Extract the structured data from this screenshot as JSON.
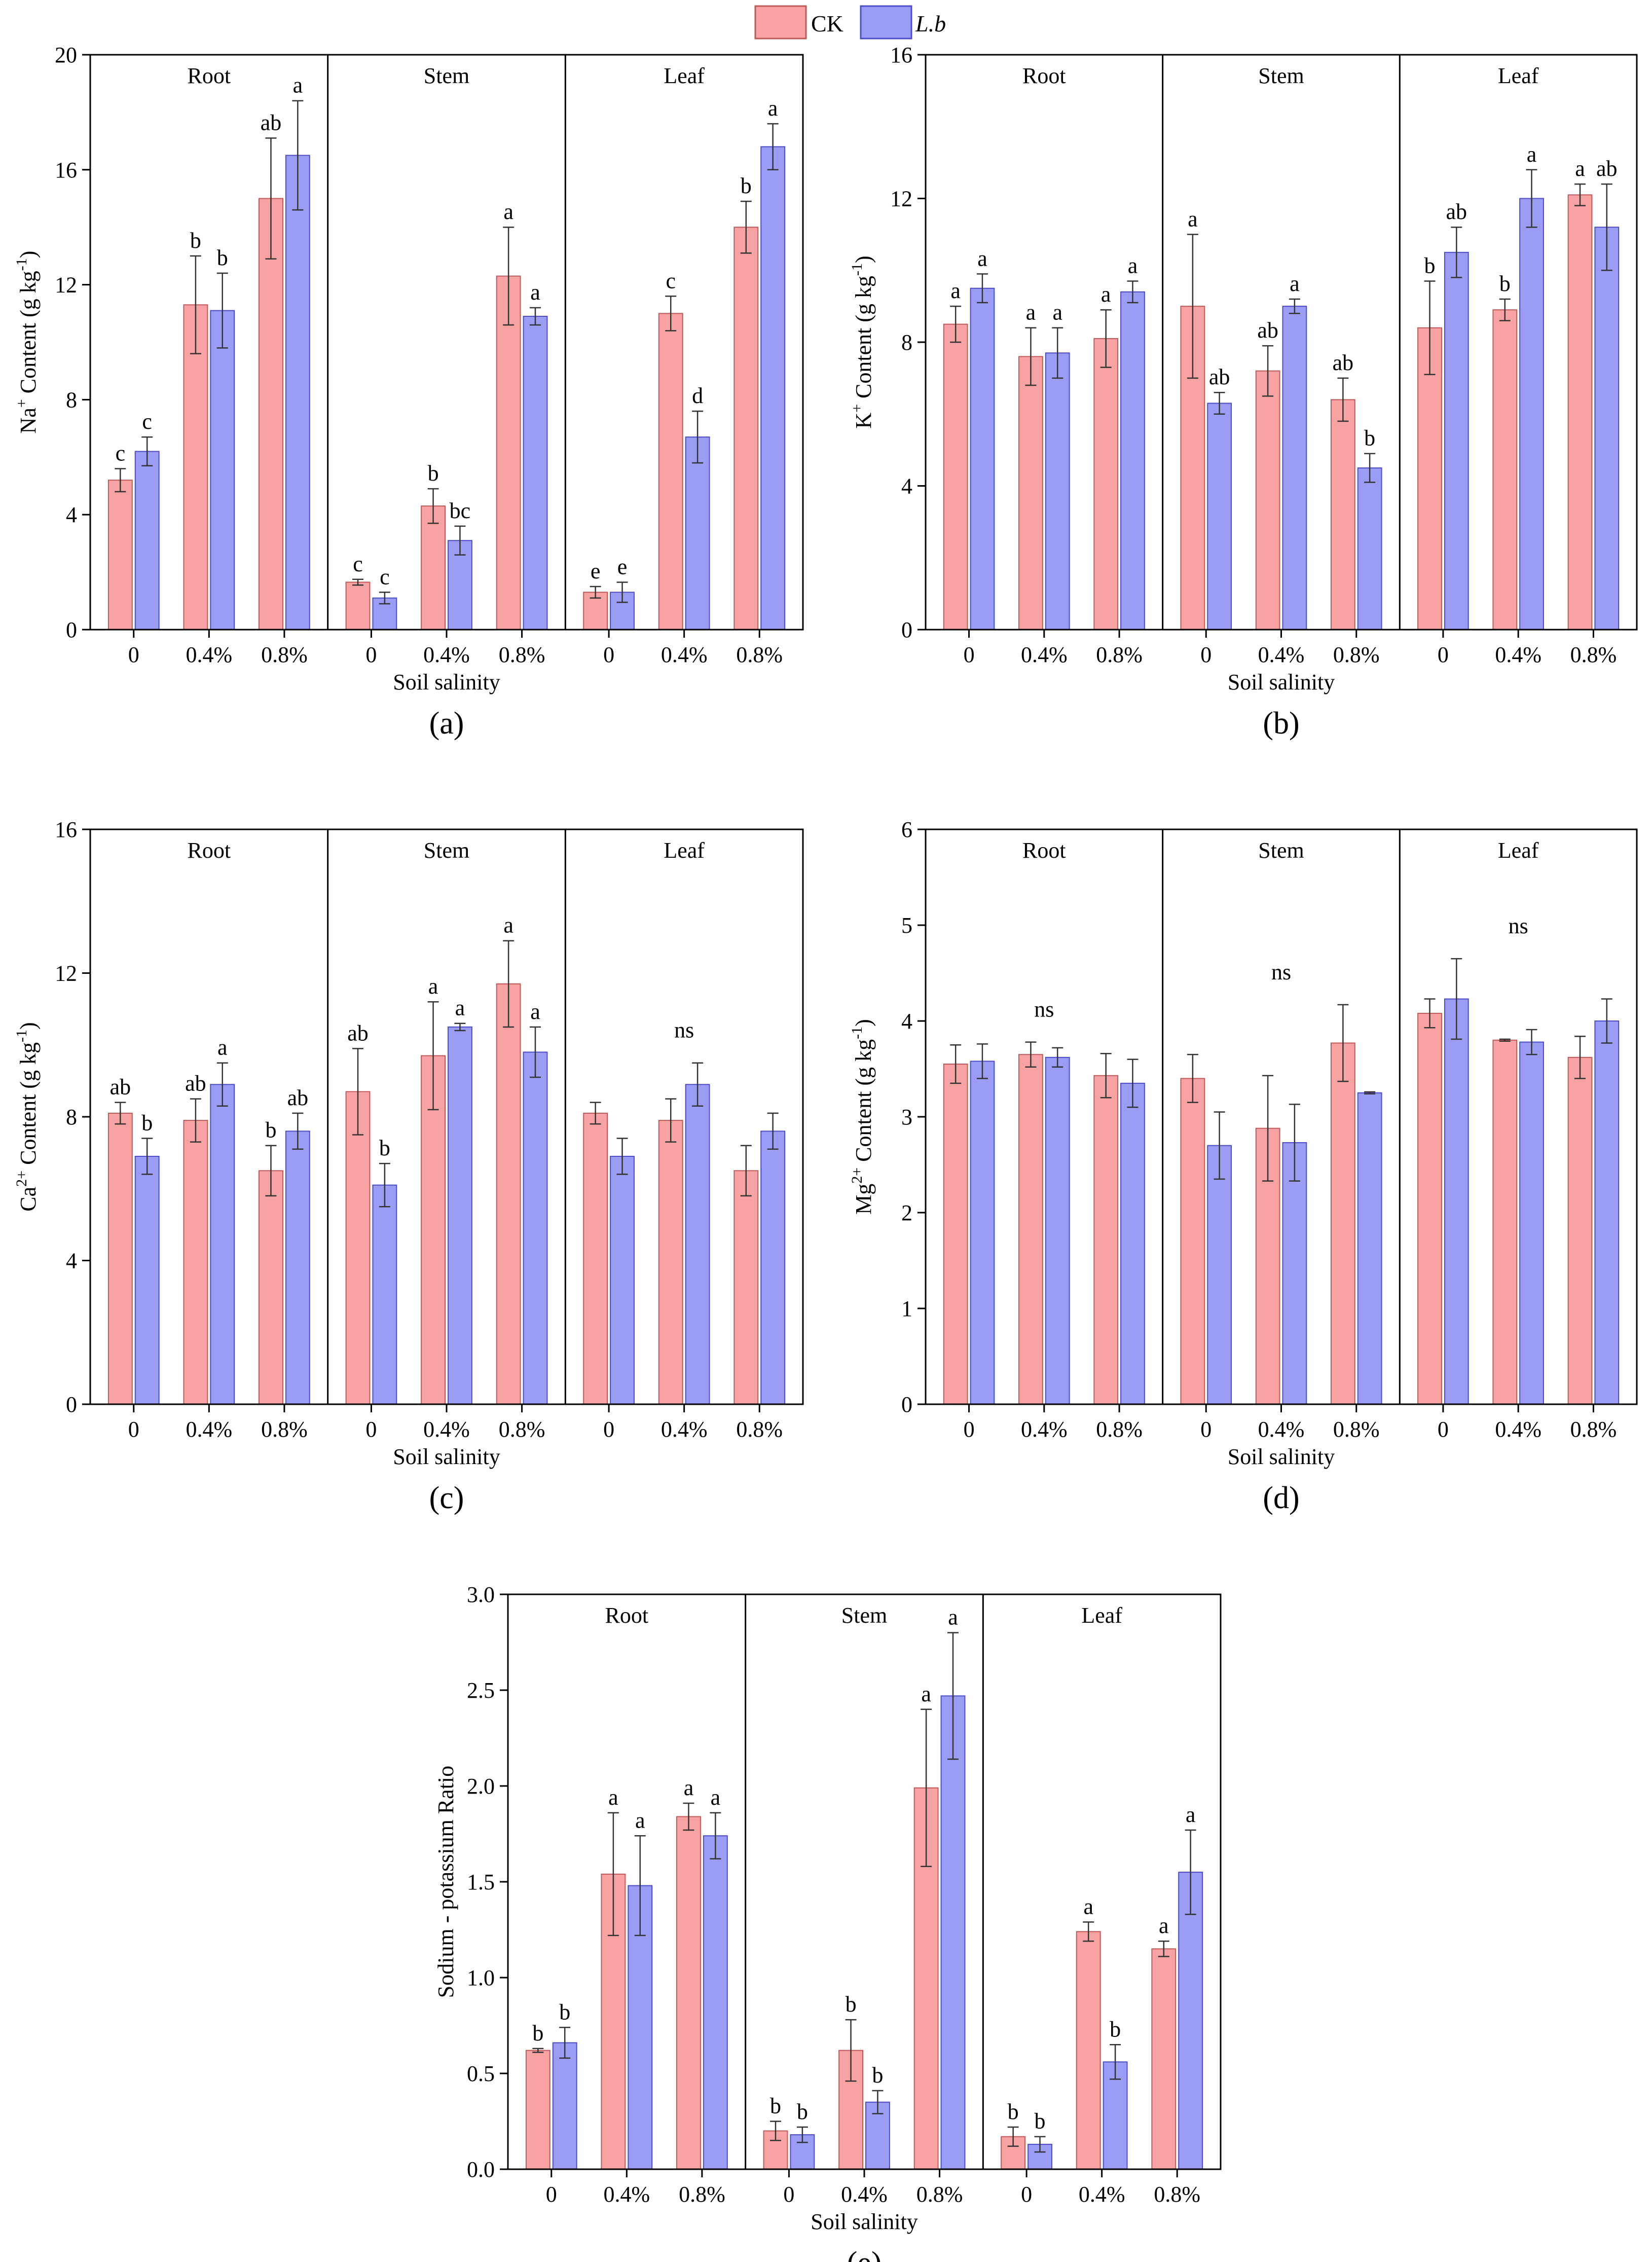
{
  "legend": {
    "items": [
      {
        "name": "CK",
        "italic": false,
        "color": "#f7a3a3",
        "stroke": "#c05a5a"
      },
      {
        "name": "L.b",
        "italic": true,
        "color": "#9b9cf4",
        "stroke": "#4c4cc8"
      }
    ]
  },
  "chart_data": [
    {
      "type": "bar",
      "panel": "(a)",
      "ylabel_main": "Na",
      "ylabel_sup": "+",
      "ylabel_rest": " Content (g kg",
      "ylabel_unit_sup": "-1",
      "ylabel_close": ")",
      "xlabel": "Soil salinity",
      "ylim": [
        0,
        20
      ],
      "yticks": [
        "0",
        "4",
        "8",
        "12",
        "16",
        "20"
      ],
      "ytick_values": [
        0,
        4,
        8,
        12,
        16,
        20
      ],
      "groups": [
        "Root",
        "Stem",
        "Leaf"
      ],
      "categories": [
        "0",
        "0.4%",
        "0.8%"
      ],
      "group_notes": [
        "",
        "",
        ""
      ],
      "series": [
        {
          "name": "CK",
          "values": [
            [
              5.2,
              11.3,
              15.0
            ],
            [
              1.65,
              4.3,
              12.3
            ],
            [
              1.3,
              11.0,
              14.0
            ]
          ],
          "errors": [
            [
              0.4,
              1.7,
              2.1
            ],
            [
              0.1,
              0.6,
              1.7
            ],
            [
              0.2,
              0.6,
              0.9
            ]
          ],
          "letters": [
            [
              "c",
              "b",
              "ab"
            ],
            [
              "c",
              "b",
              "a"
            ],
            [
              "e",
              "c",
              "b"
            ]
          ]
        },
        {
          "name": "L.b",
          "values": [
            [
              6.2,
              11.1,
              16.5
            ],
            [
              1.1,
              3.1,
              10.9
            ],
            [
              1.3,
              6.7,
              16.8
            ]
          ],
          "errors": [
            [
              0.5,
              1.3,
              1.9
            ],
            [
              0.2,
              0.5,
              0.3
            ],
            [
              0.35,
              0.9,
              0.8
            ]
          ],
          "letters": [
            [
              "c",
              "b",
              "a"
            ],
            [
              "c",
              "bc",
              "a"
            ],
            [
              "e",
              "d",
              "a"
            ]
          ]
        }
      ]
    },
    {
      "type": "bar",
      "panel": "(b)",
      "ylabel_main": "K",
      "ylabel_sup": "+",
      "ylabel_rest": " Content (g kg",
      "ylabel_unit_sup": "-1",
      "ylabel_close": ")",
      "xlabel": "Soil salinity",
      "ylim": [
        0,
        16
      ],
      "yticks": [
        "0",
        "4",
        "8",
        "12",
        "16"
      ],
      "ytick_values": [
        0,
        4,
        8,
        12,
        16
      ],
      "groups": [
        "Root",
        "Stem",
        "Leaf"
      ],
      "categories": [
        "0",
        "0.4%",
        "0.8%"
      ],
      "group_notes": [
        "",
        "",
        ""
      ],
      "series": [
        {
          "name": "CK",
          "values": [
            [
              8.5,
              7.6,
              8.1
            ],
            [
              9.0,
              7.2,
              6.4
            ],
            [
              8.4,
              8.9,
              12.1
            ]
          ],
          "errors": [
            [
              0.5,
              0.8,
              0.8
            ],
            [
              2.0,
              0.7,
              0.6
            ],
            [
              1.3,
              0.3,
              0.3
            ]
          ],
          "letters": [
            [
              "a",
              "a",
              "a"
            ],
            [
              "a",
              "ab",
              "ab"
            ],
            [
              "b",
              "b",
              "a"
            ]
          ]
        },
        {
          "name": "L.b",
          "values": [
            [
              9.5,
              7.7,
              9.4
            ],
            [
              6.3,
              9.0,
              4.5
            ],
            [
              10.5,
              12.0,
              11.2
            ]
          ],
          "errors": [
            [
              0.4,
              0.7,
              0.3
            ],
            [
              0.3,
              0.2,
              0.4
            ],
            [
              0.7,
              0.8,
              1.2
            ]
          ],
          "letters": [
            [
              "a",
              "a",
              "a"
            ],
            [
              "ab",
              "a",
              "b"
            ],
            [
              "ab",
              "a",
              "ab"
            ]
          ]
        }
      ]
    },
    {
      "type": "bar",
      "panel": "(c)",
      "ylabel_main": "Ca",
      "ylabel_sup": "2+",
      "ylabel_rest": " Content (g kg",
      "ylabel_unit_sup": "-1",
      "ylabel_close": ")",
      "xlabel": "Soil salinity",
      "ylim": [
        0,
        16
      ],
      "yticks": [
        "0",
        "4",
        "8",
        "12",
        "16"
      ],
      "ytick_values": [
        0,
        4,
        8,
        12,
        16
      ],
      "groups": [
        "Root",
        "Stem",
        "Leaf"
      ],
      "categories": [
        "0",
        "0.4%",
        "0.8%"
      ],
      "group_notes": [
        "",
        "",
        "ns"
      ],
      "series": [
        {
          "name": "CK",
          "values": [
            [
              8.1,
              7.9,
              6.5
            ],
            [
              8.7,
              9.7,
              11.7
            ],
            [
              8.1,
              7.9,
              6.5
            ]
          ],
          "errors": [
            [
              0.3,
              0.6,
              0.7
            ],
            [
              1.2,
              1.5,
              1.2
            ],
            [
              0.3,
              0.6,
              0.7
            ]
          ],
          "letters": [
            [
              "ab",
              "ab",
              "b"
            ],
            [
              "ab",
              "a",
              "a"
            ],
            [
              "",
              "",
              ""
            ]
          ]
        },
        {
          "name": "L.b",
          "values": [
            [
              6.9,
              8.9,
              7.6
            ],
            [
              6.1,
              10.5,
              9.8
            ],
            [
              6.9,
              8.9,
              7.6
            ]
          ],
          "errors": [
            [
              0.5,
              0.6,
              0.5
            ],
            [
              0.6,
              0.1,
              0.7
            ],
            [
              0.5,
              0.6,
              0.5
            ]
          ],
          "letters": [
            [
              "b",
              "a",
              "ab"
            ],
            [
              "b",
              "a",
              "a"
            ],
            [
              "",
              "",
              ""
            ]
          ]
        }
      ]
    },
    {
      "type": "bar",
      "panel": "(d)",
      "ylabel_main": "Mg",
      "ylabel_sup": "2+",
      "ylabel_rest": " Content (g kg",
      "ylabel_unit_sup": "-1",
      "ylabel_close": ")",
      "xlabel": "Soil salinity",
      "ylim": [
        0,
        6
      ],
      "yticks": [
        "0",
        "1",
        "2",
        "3",
        "4",
        "5",
        "6"
      ],
      "ytick_values": [
        0,
        1,
        2,
        3,
        4,
        5,
        6
      ],
      "groups": [
        "Root",
        "Stem",
        "Leaf"
      ],
      "categories": [
        "0",
        "0.4%",
        "0.8%"
      ],
      "group_notes": [
        "ns",
        "ns",
        "ns"
      ],
      "series": [
        {
          "name": "CK",
          "values": [
            [
              3.55,
              3.65,
              3.43
            ],
            [
              3.4,
              2.88,
              3.77
            ],
            [
              4.08,
              3.8,
              3.62
            ]
          ],
          "errors": [
            [
              0.2,
              0.13,
              0.23
            ],
            [
              0.25,
              0.55,
              0.4
            ],
            [
              0.15,
              0.01,
              0.22
            ]
          ],
          "letters": [
            [
              "",
              "",
              ""
            ],
            [
              "",
              "",
              ""
            ],
            [
              "",
              "",
              ""
            ]
          ]
        },
        {
          "name": "L.b",
          "values": [
            [
              3.58,
              3.62,
              3.35
            ],
            [
              2.7,
              2.73,
              3.25
            ],
            [
              4.23,
              3.78,
              4.0
            ]
          ],
          "errors": [
            [
              0.18,
              0.1,
              0.25
            ],
            [
              0.35,
              0.4,
              0.01
            ],
            [
              0.42,
              0.13,
              0.23
            ]
          ],
          "letters": [
            [
              "",
              "",
              ""
            ],
            [
              "",
              "",
              ""
            ],
            [
              "",
              "",
              ""
            ]
          ]
        }
      ]
    },
    {
      "type": "bar",
      "panel": "(e)",
      "ylabel_main": "Sodium - potassium Ratio",
      "ylabel_sup": "",
      "ylabel_rest": "",
      "ylabel_unit_sup": "",
      "ylabel_close": "",
      "xlabel": "Soil salinity",
      "ylim": [
        0,
        3
      ],
      "yticks": [
        "0.0",
        "0.5",
        "1.0",
        "1.5",
        "2.0",
        "2.5",
        "3.0"
      ],
      "ytick_values": [
        0,
        0.5,
        1.0,
        1.5,
        2.0,
        2.5,
        3.0
      ],
      "groups": [
        "Root",
        "Stem",
        "Leaf"
      ],
      "categories": [
        "0",
        "0.4%",
        "0.8%"
      ],
      "group_notes": [
        "",
        "",
        ""
      ],
      "series": [
        {
          "name": "CK",
          "values": [
            [
              0.62,
              1.54,
              1.84
            ],
            [
              0.2,
              0.62,
              1.99
            ],
            [
              0.17,
              1.24,
              1.15
            ]
          ],
          "errors": [
            [
              0.01,
              0.32,
              0.07
            ],
            [
              0.05,
              0.16,
              0.41
            ],
            [
              0.05,
              0.05,
              0.04
            ]
          ],
          "letters": [
            [
              "b",
              "a",
              "a"
            ],
            [
              "b",
              "b",
              "a"
            ],
            [
              "b",
              "a",
              "a"
            ]
          ]
        },
        {
          "name": "L.b",
          "values": [
            [
              0.66,
              1.48,
              1.74
            ],
            [
              0.18,
              0.35,
              2.47
            ],
            [
              0.13,
              0.56,
              1.55
            ]
          ],
          "errors": [
            [
              0.08,
              0.26,
              0.12
            ],
            [
              0.04,
              0.06,
              0.33
            ],
            [
              0.04,
              0.09,
              0.22
            ]
          ],
          "letters": [
            [
              "b",
              "a",
              "a"
            ],
            [
              "b",
              "b",
              "a"
            ],
            [
              "b",
              "b",
              "a"
            ]
          ]
        }
      ]
    }
  ]
}
